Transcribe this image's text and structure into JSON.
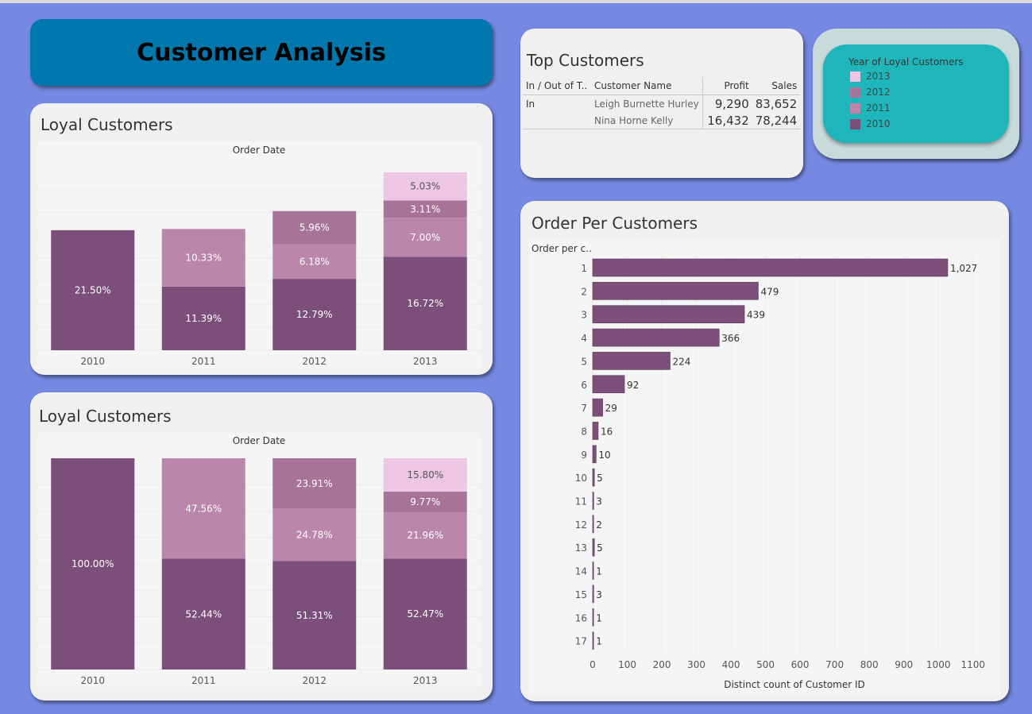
{
  "dashboard": {
    "title": "Customer Analysis"
  },
  "colors": {
    "y2010": "#7b4f7a",
    "y2011": "#bb86ab",
    "y2012": "#a87399",
    "y2013": "#ecc6e3",
    "title_bg": "#0078ad",
    "legend_bg": "#1fb6bb"
  },
  "top_customers": {
    "title": "Top Customers",
    "headers": {
      "in_out": "In / Out of T..",
      "name": "Customer Name",
      "profit": "Profit",
      "sales": "Sales"
    },
    "group": "In",
    "rows": [
      {
        "name": "Leigh Burnette Hurley",
        "profit": "9,290",
        "sales": "83,652"
      },
      {
        "name": "Nina Horne Kelly",
        "profit": "16,432",
        "sales": "78,244"
      }
    ]
  },
  "legend": {
    "title": "Year of Loyal Customers",
    "items": [
      {
        "label": "2013",
        "color": "#ecc6e3"
      },
      {
        "label": "2012",
        "color": "#a87399"
      },
      {
        "label": "2011",
        "color": "#bb86ab"
      },
      {
        "label": "2010",
        "color": "#7b4f7a"
      }
    ]
  },
  "chart_data": [
    {
      "type": "bar",
      "stacked": true,
      "title": "Loyal Customers",
      "header": "Order Date",
      "categories": [
        "2010",
        "2011",
        "2012",
        "2013"
      ],
      "series": [
        {
          "name": "2010",
          "values": [
            21.5,
            11.39,
            12.79,
            16.72
          ],
          "labels": [
            "21.50%",
            "11.39%",
            "12.79%",
            "16.72%"
          ]
        },
        {
          "name": "2011",
          "values": [
            0,
            10.33,
            6.18,
            7.0
          ],
          "labels": [
            "",
            "10.33%",
            "6.18%",
            "7.00%"
          ]
        },
        {
          "name": "2012",
          "values": [
            0,
            0,
            5.96,
            3.11
          ],
          "labels": [
            "",
            "",
            "5.96%",
            "3.11%"
          ]
        },
        {
          "name": "2013",
          "values": [
            0,
            0,
            0,
            5.03
          ],
          "labels": [
            "",
            "",
            "",
            "5.03%"
          ]
        }
      ],
      "ylim": [
        0,
        33
      ],
      "grid": true
    },
    {
      "type": "bar",
      "stacked": true,
      "title": "Loyal Customers",
      "header": "Order Date",
      "categories": [
        "2010",
        "2011",
        "2012",
        "2013"
      ],
      "series": [
        {
          "name": "2010",
          "values": [
            100.0,
            52.44,
            51.31,
            52.47
          ],
          "labels": [
            "100.00%",
            "52.44%",
            "51.31%",
            "52.47%"
          ]
        },
        {
          "name": "2011",
          "values": [
            0,
            47.56,
            24.78,
            21.96
          ],
          "labels": [
            "",
            "47.56%",
            "24.78%",
            "21.96%"
          ]
        },
        {
          "name": "2012",
          "values": [
            0,
            0,
            23.91,
            9.77
          ],
          "labels": [
            "",
            "",
            "23.91%",
            "9.77%"
          ]
        },
        {
          "name": "2013",
          "values": [
            0,
            0,
            0,
            15.8
          ],
          "labels": [
            "",
            "",
            "",
            "15.80%"
          ]
        }
      ],
      "ylim": [
        0,
        100
      ],
      "grid": true
    },
    {
      "type": "bar",
      "orientation": "horizontal",
      "title": "Order Per Customers",
      "ylabel": "Order per c..",
      "xlabel": "Distinct count of Customer ID",
      "categories": [
        "1",
        "2",
        "3",
        "4",
        "5",
        "6",
        "7",
        "8",
        "9",
        "10",
        "11",
        "12",
        "13",
        "14",
        "15",
        "16",
        "17"
      ],
      "values": [
        1027,
        479,
        439,
        366,
        224,
        92,
        29,
        16,
        10,
        5,
        3,
        2,
        5,
        1,
        3,
        1,
        1
      ],
      "value_labels": [
        "1,027",
        "479",
        "439",
        "366",
        "224",
        "92",
        "29",
        "16",
        "10",
        "5",
        "3",
        "2",
        "5",
        "1",
        "3",
        "1",
        "1"
      ],
      "xticks": [
        "0",
        "100",
        "200",
        "300",
        "400",
        "500",
        "600",
        "700",
        "800",
        "900",
        "1000",
        "1100"
      ],
      "xlim": [
        0,
        1100
      ],
      "grid": true
    }
  ]
}
